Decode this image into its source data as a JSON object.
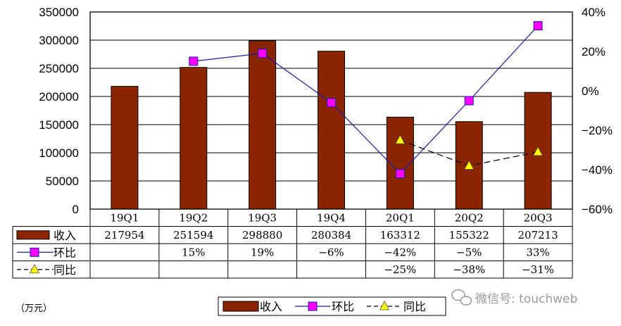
{
  "chart_data": {
    "type": "bar",
    "categories": [
      "19Q1",
      "19Q2",
      "19Q3",
      "19Q4",
      "20Q1",
      "20Q2",
      "20Q3"
    ],
    "series": [
      {
        "name": "收入",
        "kind": "bar",
        "axis": "left",
        "values": [
          217954,
          251594,
          298880,
          280384,
          163312,
          155322,
          207213
        ],
        "labels": [
          "217954",
          "251594",
          "298880",
          "280384",
          "163312",
          "155322",
          "207213"
        ],
        "color": "#8b2500"
      },
      {
        "name": "环比",
        "kind": "line",
        "axis": "right",
        "values": [
          null,
          15,
          19,
          -6,
          -42,
          -5,
          33
        ],
        "labels": [
          "",
          "15%",
          "19%",
          "-6%",
          "-42%",
          "-5%",
          "33%"
        ],
        "color": "#ff00ff",
        "line_color": "#1c1c9c",
        "marker": "square"
      },
      {
        "name": "同比",
        "kind": "line",
        "axis": "right",
        "values": [
          null,
          null,
          null,
          null,
          -25,
          -38,
          -31
        ],
        "labels": [
          "",
          "",
          "",
          "",
          "-25%",
          "-38%",
          "-31%"
        ],
        "color": "#ffff00",
        "line_color": "#000000",
        "marker": "triangle",
        "dash": true
      }
    ],
    "ylim": [
      0,
      350000
    ],
    "y_ticks": [
      "350000",
      "300000",
      "250000",
      "200000",
      "150000",
      "100000",
      "50000",
      "0"
    ],
    "y2lim": [
      -60,
      40
    ],
    "y2_ticks": [
      "40%",
      "20%",
      "0%",
      "-20%",
      "-40%",
      "-60%"
    ],
    "unit_label": "（万元）",
    "legend_position": "bottom"
  },
  "watermark": "微信号: touchweb"
}
